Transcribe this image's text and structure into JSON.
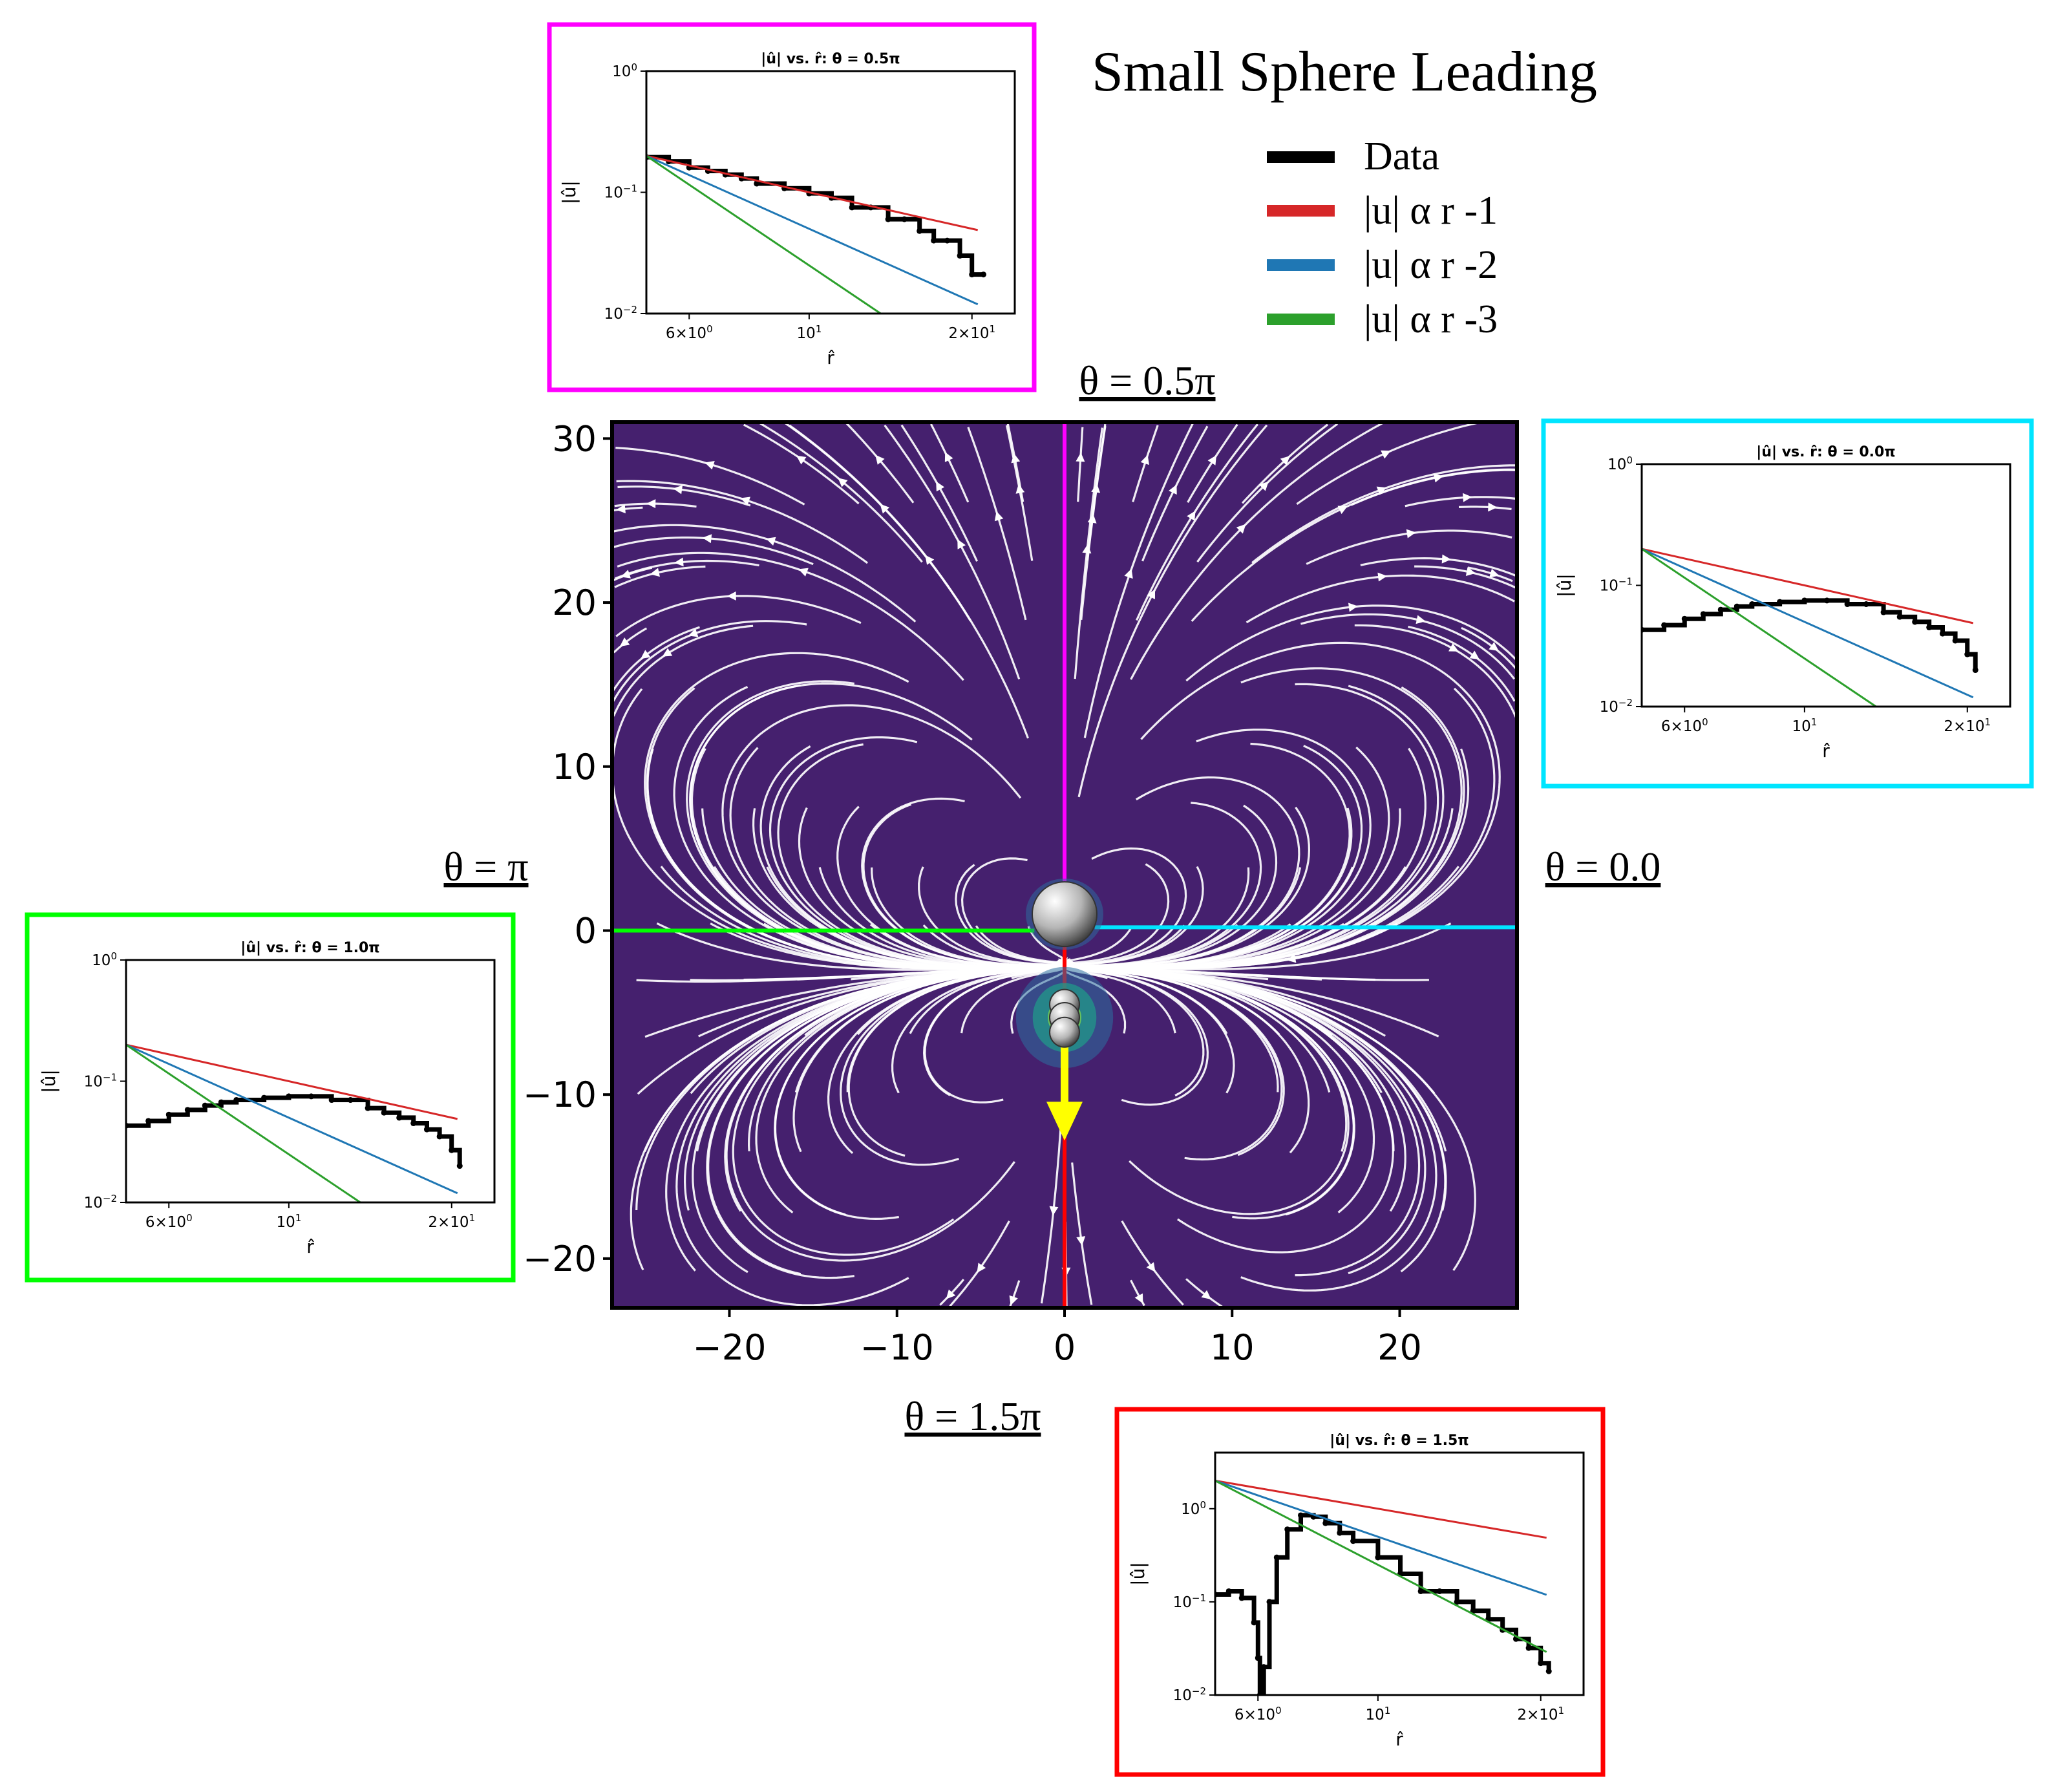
{
  "title": "Small Sphere Leading",
  "legend": [
    {
      "label": "Data",
      "color": "#000000"
    },
    {
      "label": "|u| α r -1",
      "color": "#d62728"
    },
    {
      "label": "|u| α r -2",
      "color": "#1f77b4"
    },
    {
      "label": "|u| α r -3",
      "color": "#2ca02c"
    }
  ],
  "direction_labels": {
    "top": "θ = 0.5π",
    "right": "θ = 0.0",
    "left": "θ = π",
    "bottom": "θ = 1.5π"
  },
  "chart_data": [
    {
      "type": "streamplot",
      "xlim": [
        -27,
        27
      ],
      "ylim": [
        -23,
        31
      ],
      "xticks": [
        -20,
        -10,
        0,
        10,
        20
      ],
      "yticks": [
        -20,
        -10,
        0,
        10,
        20,
        30
      ],
      "x_tick_labels": [
        "−20",
        "−10",
        "0",
        "10",
        "20"
      ],
      "y_tick_labels": [
        "−20",
        "−10",
        "0",
        "10",
        "20",
        "30"
      ],
      "background_color": "#45206e",
      "large_sphere": {
        "x": 0,
        "y": 1
      },
      "small_spheres": [
        {
          "x": 0,
          "y": -4.5
        },
        {
          "x": 0,
          "y": -5.3
        },
        {
          "x": 0,
          "y": -6.2
        }
      ],
      "motion_arrow": {
        "from": [
          0,
          -7
        ],
        "to": [
          0,
          -12.8
        ],
        "color": "#ffff00"
      },
      "rays": [
        {
          "theta": "0.5π",
          "color": "#ff00ff"
        },
        {
          "theta": "0.0",
          "color": "#00e5ff"
        },
        {
          "theta": "π",
          "color": "#00ff00"
        },
        {
          "theta": "1.5π",
          "color": "#ff0000"
        }
      ]
    },
    {
      "type": "line",
      "scale": "log-log",
      "title": "|û| vs. r̂: θ = 0.5π",
      "xlabel": "r̂",
      "ylabel": "|û|",
      "frame_color": "#ff00ff",
      "xlim": [
        5,
        24
      ],
      "ylim": [
        0.01,
        1
      ],
      "xticks": [
        {
          "v": 6,
          "m": "6×10",
          "e": "0"
        },
        {
          "v": 10,
          "m": "10",
          "e": "1"
        },
        {
          "v": 20,
          "m": "2×10",
          "e": "1"
        }
      ],
      "yticks": [
        {
          "v": 1,
          "e": "0"
        },
        {
          "v": 0.1,
          "e": "−1"
        },
        {
          "v": 0.01,
          "e": "−2"
        }
      ],
      "series": [
        {
          "color": "#000000",
          "x": [
            5.0,
            5.5,
            6.0,
            6.5,
            7.0,
            7.5,
            8.0,
            9.0,
            10.0,
            11.0,
            12.0,
            13.0,
            14.0,
            15.0,
            16.0,
            17.0,
            18.0,
            19.0,
            20.0,
            21.0
          ],
          "y": [
            0.195,
            0.18,
            0.16,
            0.15,
            0.14,
            0.13,
            0.118,
            0.108,
            0.098,
            0.09,
            0.075,
            0.075,
            0.06,
            0.06,
            0.048,
            0.04,
            0.04,
            0.03,
            0.021,
            0.021
          ]
        },
        {
          "color": "#d62728",
          "x": [
            5,
            20.5
          ],
          "y": [
            0.2,
            0.0488
          ]
        },
        {
          "color": "#1f77b4",
          "x": [
            5,
            20.5
          ],
          "y": [
            0.2,
            0.0119
          ]
        },
        {
          "color": "#2ca02c",
          "x": [
            5,
            13.6
          ],
          "y": [
            0.2,
            0.0099
          ]
        }
      ]
    },
    {
      "type": "line",
      "scale": "log-log",
      "title": "|û| vs. r̂: θ = 0.0π",
      "xlabel": "r̂",
      "ylabel": "|û|",
      "frame_color": "#00e5ff",
      "xlim": [
        5,
        24
      ],
      "ylim": [
        0.01,
        1
      ],
      "xticks": [
        {
          "v": 6,
          "m": "6×10",
          "e": "0"
        },
        {
          "v": 10,
          "m": "10",
          "e": "1"
        },
        {
          "v": 20,
          "m": "2×10",
          "e": "1"
        }
      ],
      "yticks": [
        {
          "v": 1,
          "e": "0"
        },
        {
          "v": 0.1,
          "e": "−1"
        },
        {
          "v": 0.01,
          "e": "−2"
        }
      ],
      "series": [
        {
          "color": "#000000",
          "x": [
            5.0,
            5.5,
            6.0,
            6.5,
            7.0,
            7.5,
            8.0,
            9.0,
            10.0,
            11.0,
            12.0,
            13.0,
            14.0,
            15.0,
            16.0,
            17.0,
            18.0,
            19.0,
            20.0,
            20.7
          ],
          "y": [
            0.043,
            0.047,
            0.053,
            0.058,
            0.063,
            0.067,
            0.07,
            0.073,
            0.075,
            0.075,
            0.07,
            0.07,
            0.06,
            0.055,
            0.05,
            0.045,
            0.04,
            0.035,
            0.027,
            0.02
          ]
        },
        {
          "color": "#d62728",
          "x": [
            5,
            20.5
          ],
          "y": [
            0.2,
            0.0488
          ]
        },
        {
          "color": "#1f77b4",
          "x": [
            5,
            20.5
          ],
          "y": [
            0.2,
            0.0119
          ]
        },
        {
          "color": "#2ca02c",
          "x": [
            5,
            13.6
          ],
          "y": [
            0.2,
            0.0099
          ]
        }
      ]
    },
    {
      "type": "line",
      "scale": "log-log",
      "title": "|û| vs. r̂: θ = 1.0π",
      "xlabel": "r̂",
      "ylabel": "|û|",
      "frame_color": "#00ff00",
      "xlim": [
        5,
        24
      ],
      "ylim": [
        0.01,
        1
      ],
      "xticks": [
        {
          "v": 6,
          "m": "6×10",
          "e": "0"
        },
        {
          "v": 10,
          "m": "10",
          "e": "1"
        },
        {
          "v": 20,
          "m": "2×10",
          "e": "1"
        }
      ],
      "yticks": [
        {
          "v": 1,
          "e": "0"
        },
        {
          "v": 0.1,
          "e": "−1"
        },
        {
          "v": 0.01,
          "e": "−2"
        }
      ],
      "series": [
        {
          "color": "#000000",
          "x": [
            5.0,
            5.5,
            6.0,
            6.5,
            7.0,
            7.5,
            8.0,
            9.0,
            10.0,
            11.0,
            12.0,
            13.0,
            14.0,
            15.0,
            16.0,
            17.0,
            18.0,
            19.0,
            20.0,
            20.7
          ],
          "y": [
            0.043,
            0.047,
            0.053,
            0.058,
            0.063,
            0.067,
            0.07,
            0.073,
            0.075,
            0.075,
            0.07,
            0.07,
            0.06,
            0.055,
            0.05,
            0.045,
            0.04,
            0.035,
            0.027,
            0.02
          ]
        },
        {
          "color": "#d62728",
          "x": [
            5,
            20.5
          ],
          "y": [
            0.2,
            0.0488
          ]
        },
        {
          "color": "#1f77b4",
          "x": [
            5,
            20.5
          ],
          "y": [
            0.2,
            0.0119
          ]
        },
        {
          "color": "#2ca02c",
          "x": [
            5,
            13.6
          ],
          "y": [
            0.2,
            0.0099
          ]
        }
      ]
    },
    {
      "type": "line",
      "scale": "log-log",
      "title": "|û| vs. r̂: θ = 1.5π",
      "xlabel": "r̂",
      "ylabel": "|û|",
      "frame_color": "#ff0000",
      "xlim": [
        5,
        24
      ],
      "ylim": [
        0.01,
        4
      ],
      "xticks": [
        {
          "v": 6,
          "m": "6×10",
          "e": "0"
        },
        {
          "v": 10,
          "m": "10",
          "e": "1"
        },
        {
          "v": 20,
          "m": "2×10",
          "e": "1"
        }
      ],
      "yticks": [
        {
          "v": 1,
          "e": "0"
        },
        {
          "v": 0.1,
          "e": "−1"
        },
        {
          "v": 0.01,
          "e": "−2"
        }
      ],
      "series": [
        {
          "color": "#000000",
          "x": [
            5.0,
            5.3,
            5.6,
            5.9,
            6.0,
            6.05,
            6.15,
            6.3,
            6.5,
            6.8,
            7.2,
            7.6,
            8.0,
            8.5,
            9.0,
            10.0,
            11.0,
            12.0,
            13.0,
            14.0,
            15.0,
            16.0,
            17.0,
            18.0,
            19.0,
            20.0,
            20.7
          ],
          "y": [
            0.12,
            0.13,
            0.11,
            0.06,
            0.025,
            0.01,
            0.02,
            0.1,
            0.3,
            0.6,
            0.85,
            0.82,
            0.7,
            0.55,
            0.45,
            0.3,
            0.2,
            0.13,
            0.13,
            0.1,
            0.08,
            0.065,
            0.05,
            0.04,
            0.032,
            0.022,
            0.018
          ]
        },
        {
          "color": "#d62728",
          "x": [
            5,
            20.5
          ],
          "y": [
            2.0,
            0.488
          ]
        },
        {
          "color": "#1f77b4",
          "x": [
            5,
            20.5
          ],
          "y": [
            2.0,
            0.119
          ]
        },
        {
          "color": "#2ca02c",
          "x": [
            5,
            20.5
          ],
          "y": [
            2.0,
            0.029
          ]
        }
      ]
    }
  ]
}
